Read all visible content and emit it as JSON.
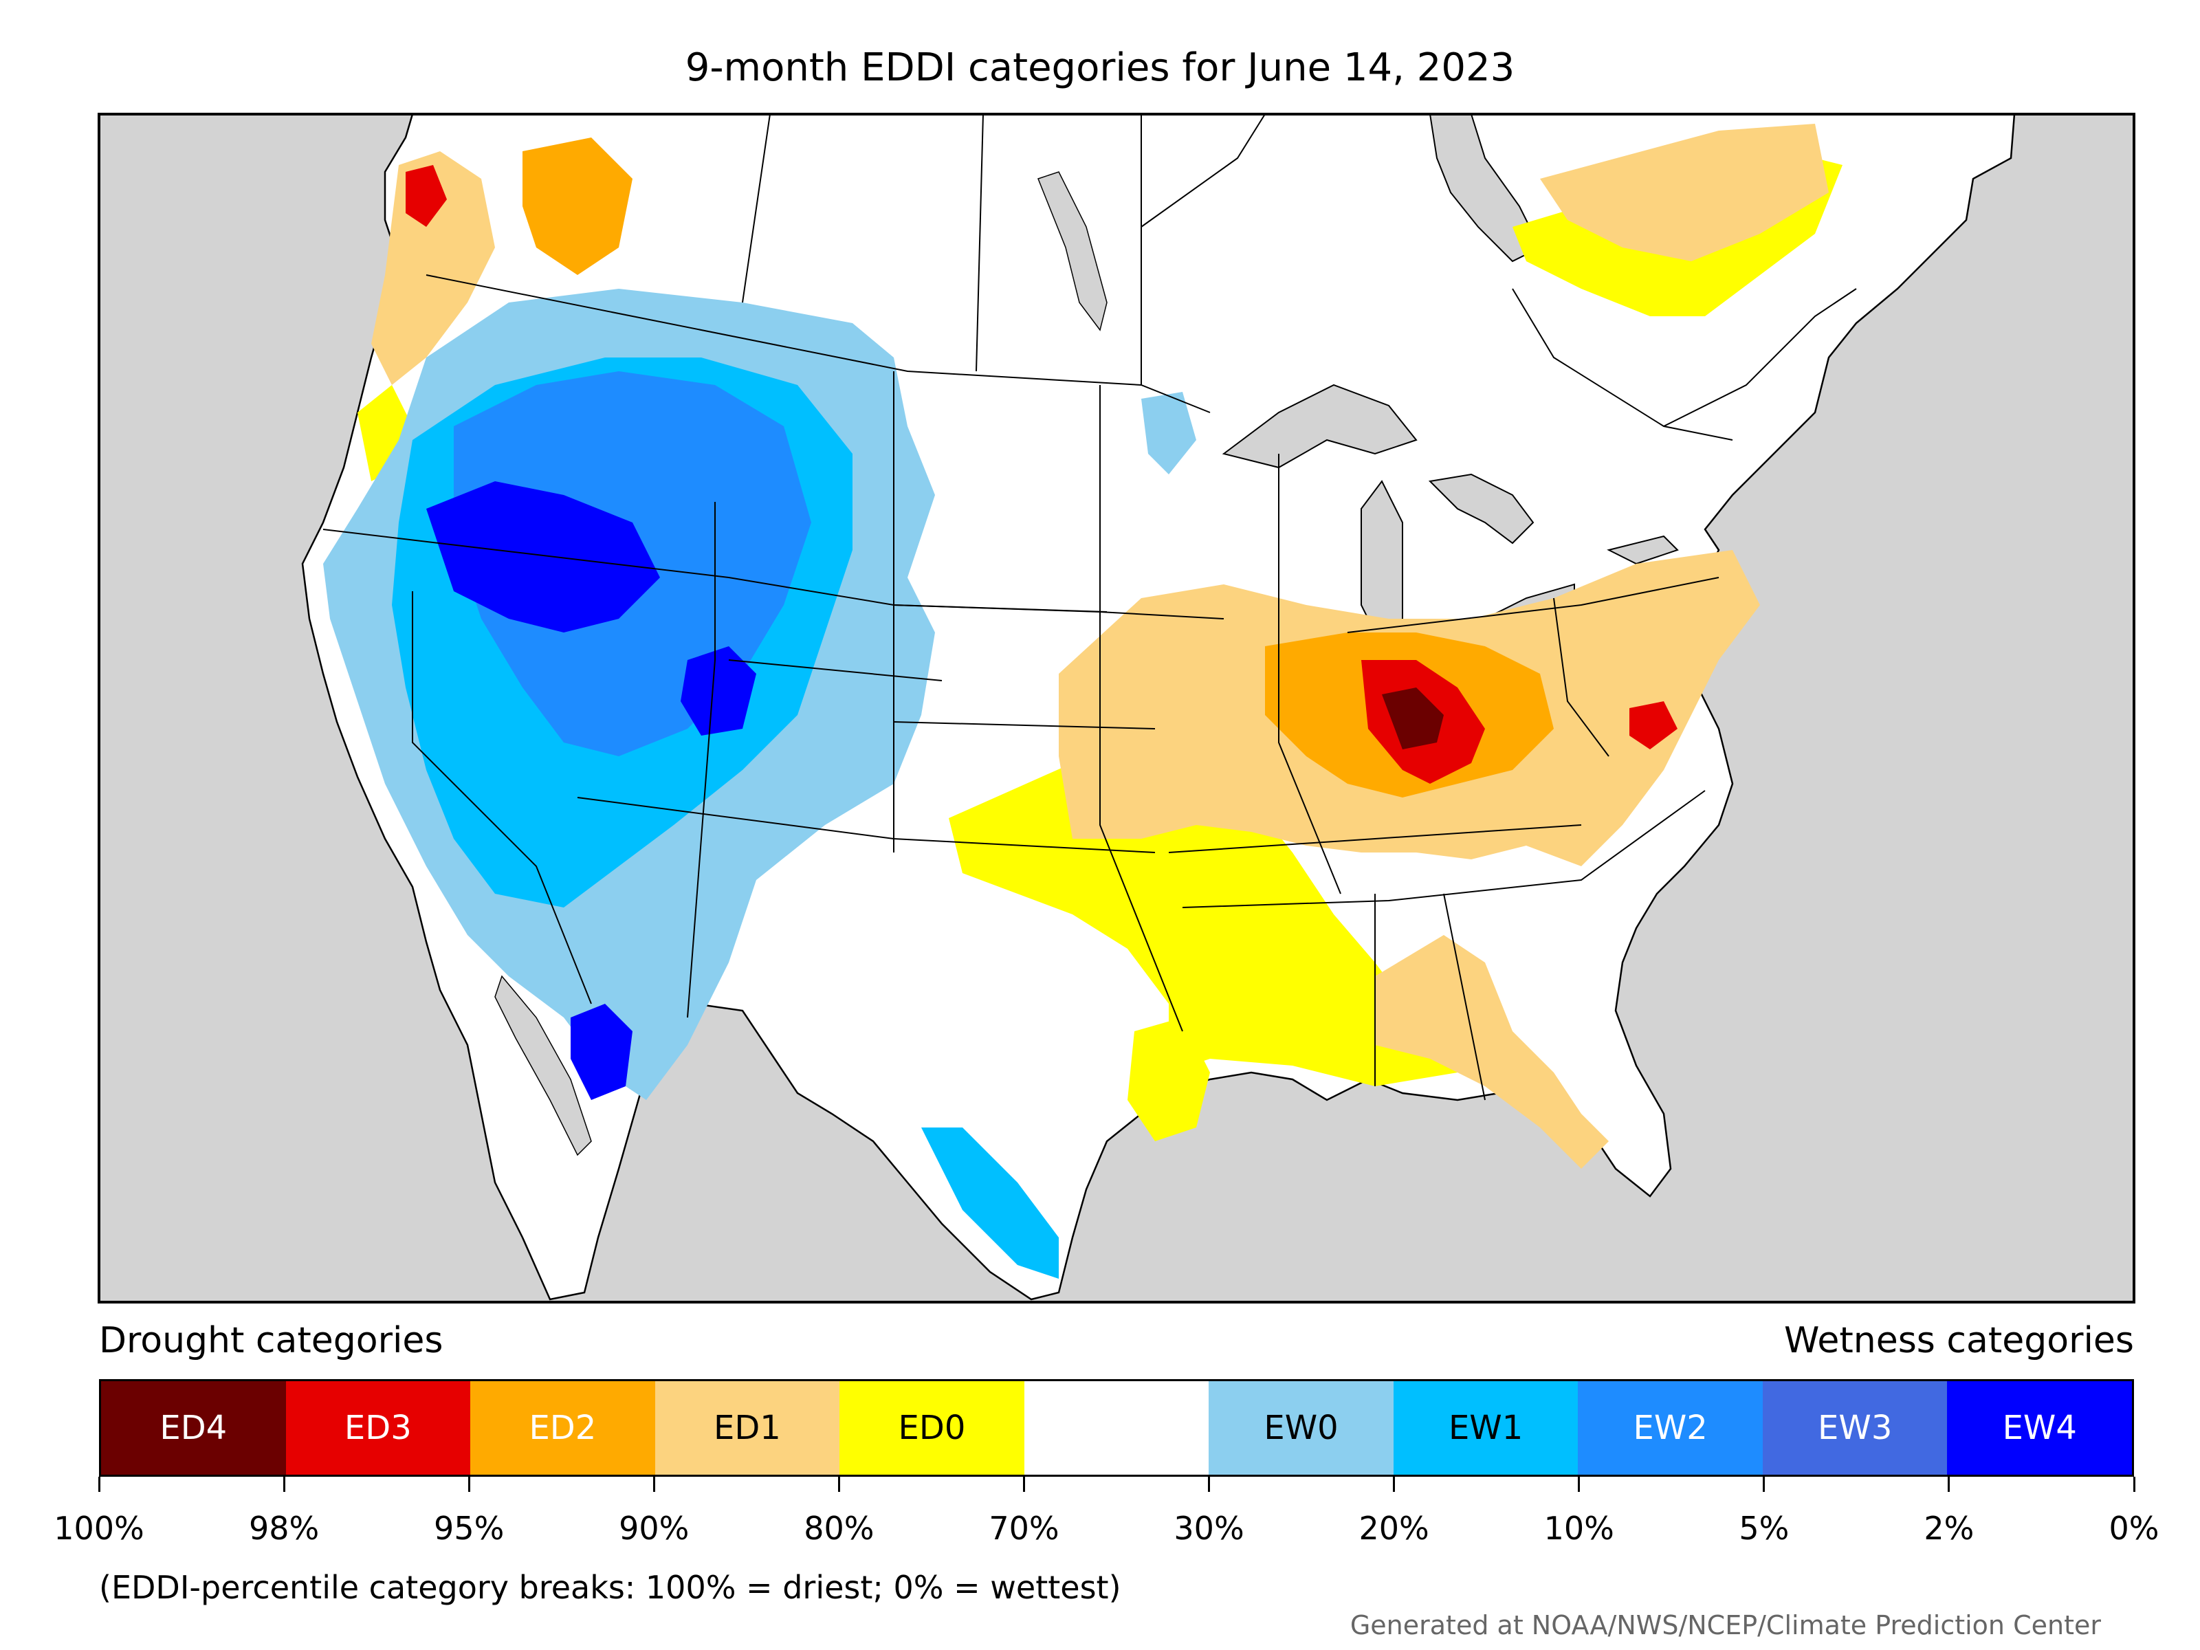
{
  "title": "9-month EDDI categories for June 14, 2023",
  "legend": {
    "drought_heading": "Drought categories",
    "wetness_heading": "Wetness categories",
    "categories": [
      {
        "label": "ED4",
        "color": "#6b0000",
        "text_color": "#ffffff"
      },
      {
        "label": "ED3",
        "color": "#e60000",
        "text_color": "#ffffff"
      },
      {
        "label": "ED2",
        "color": "#ffaa00",
        "text_color": "#ffffff"
      },
      {
        "label": "ED1",
        "color": "#fcd37f",
        "text_color": "#000000"
      },
      {
        "label": "ED0",
        "color": "#ffff00",
        "text_color": "#000000"
      },
      {
        "label": "",
        "color": "#ffffff",
        "text_color": "#000000"
      },
      {
        "label": "EW0",
        "color": "#8ccfef",
        "text_color": "#000000"
      },
      {
        "label": "EW1",
        "color": "#00bfff",
        "text_color": "#000000"
      },
      {
        "label": "EW2",
        "color": "#1e8cff",
        "text_color": "#ffffff"
      },
      {
        "label": "EW3",
        "color": "#4169e1",
        "text_color": "#ffffff"
      },
      {
        "label": "EW4",
        "color": "#0000ff",
        "text_color": "#ffffff"
      }
    ],
    "ticks": [
      "100%",
      "98%",
      "95%",
      "90%",
      "80%",
      "70%",
      "30%",
      "20%",
      "10%",
      "5%",
      "2%",
      "0%"
    ]
  },
  "note": "(EDDI-percentile category breaks: 100% = driest; 0% = wettest)",
  "credit": "Generated at NOAA/NWS/NCEP/Climate Prediction Center",
  "colors": {
    "ocean": "#d3d3d3",
    "land": "#ffffff"
  }
}
